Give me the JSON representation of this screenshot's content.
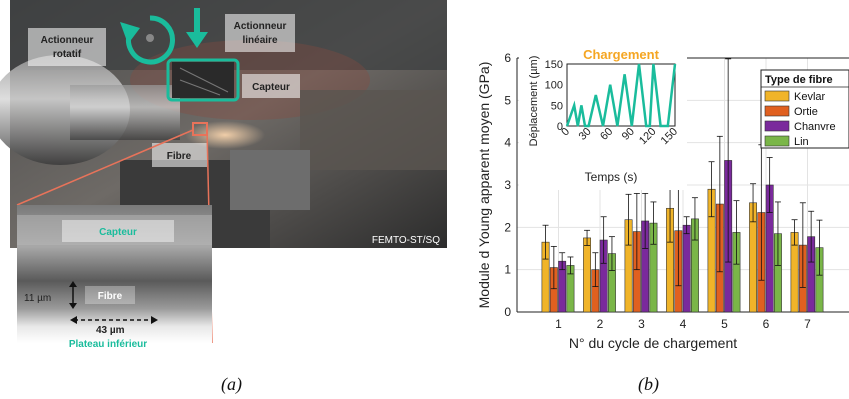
{
  "figure": {
    "label_a": "(a)",
    "label_b": "(b)"
  },
  "photo": {
    "actionneur_rotatif": [
      "Actionneur",
      "rotatif"
    ],
    "actionneur_lineaire": [
      "Actionneur",
      "linéaire"
    ],
    "capteur": "Capteur",
    "fibre": "Fibre",
    "credit": "FEMTO-ST/SQ",
    "inset": {
      "capteur": "Capteur",
      "fibre": "Fibre",
      "thickness": "11 µm",
      "width": "43 µm",
      "plateau": "Plateau inférieur"
    },
    "colors": {
      "annotation": "#1abc9c",
      "zoom_box": "#e8735a"
    }
  },
  "chart_data": [
    {
      "type": "bar",
      "xlabel": "N° du cycle de chargement",
      "ylabel": "Module d Young apparent moyen (GPa)",
      "categories": [
        "1",
        "2",
        "3",
        "4",
        "5",
        "6",
        "7"
      ],
      "ylim": [
        0,
        6
      ],
      "yticks": [
        "0",
        "1",
        "2",
        "3",
        "4",
        "5",
        "6"
      ],
      "grid": true,
      "legend": {
        "title": "Type de fibre",
        "placement": "top-right"
      },
      "series": [
        {
          "name": "Kevlar",
          "color": "#f0b429",
          "values": [
            1.65,
            1.75,
            2.18,
            2.45,
            2.9,
            2.58,
            1.88
          ],
          "err": [
            0.4,
            0.18,
            0.6,
            0.8,
            0.65,
            0.45,
            0.3
          ]
        },
        {
          "name": "Ortie",
          "color": "#e06020",
          "values": [
            1.05,
            1.0,
            1.9,
            1.92,
            2.55,
            2.35,
            1.58
          ],
          "err": [
            0.5,
            0.4,
            0.9,
            1.3,
            1.6,
            1.6,
            1.0
          ]
        },
        {
          "name": "Chanvre",
          "color": "#7a2a9c",
          "values": [
            1.2,
            1.7,
            2.15,
            2.05,
            3.58,
            3.0,
            1.78
          ],
          "err": [
            0.2,
            0.55,
            0.65,
            0.2,
            2.4,
            0.65,
            0.6
          ]
        },
        {
          "name": "Lin",
          "color": "#7ab648",
          "values": [
            1.1,
            1.38,
            2.1,
            2.2,
            1.88,
            1.85,
            1.52
          ],
          "err": [
            0.2,
            0.4,
            0.5,
            0.5,
            0.75,
            0.75,
            0.65
          ]
        }
      ]
    },
    {
      "type": "line",
      "title": "Chargement",
      "xlabel": "Temps (s)",
      "ylabel": "Déplacement (µm)",
      "xlim": [
        0,
        150
      ],
      "ylim": [
        0,
        150
      ],
      "xticks": [
        "0",
        "30",
        "60",
        "90",
        "120",
        "150"
      ],
      "yticks": [
        "0",
        "50",
        "100",
        "150"
      ],
      "color": "#1abc9c",
      "title_color": "#f5a623",
      "x": [
        0,
        10,
        15,
        20,
        25,
        30,
        40,
        50,
        60,
        70,
        80,
        90,
        100,
        110,
        115,
        120,
        130,
        140,
        150
      ],
      "y": [
        0,
        50,
        0,
        50,
        0,
        0,
        75,
        0,
        100,
        0,
        125,
        0,
        150,
        0,
        0,
        150,
        0,
        0,
        150
      ]
    }
  ]
}
